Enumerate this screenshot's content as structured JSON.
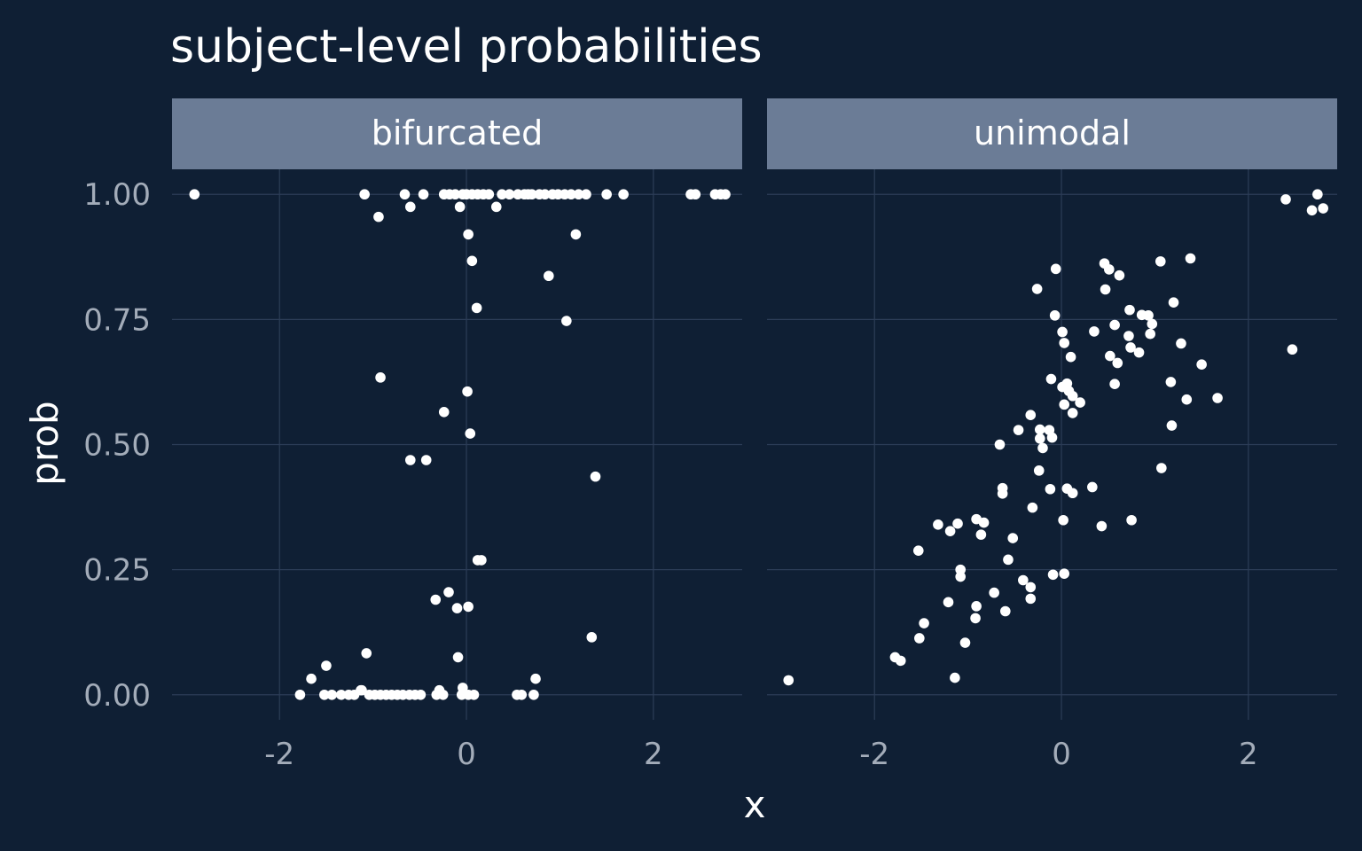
{
  "chart_data": {
    "type": "scatter",
    "title": "subject-level probabilities",
    "xlabel": "x",
    "ylabel": "prob",
    "xlim": [
      -3.15,
      2.95
    ],
    "ylim": [
      -0.05,
      1.05
    ],
    "x_ticks": [
      -2,
      0,
      2
    ],
    "x_tick_labels": [
      "-2",
      "0",
      "2"
    ],
    "y_ticks": [
      0,
      0.25,
      0.5,
      0.75,
      1
    ],
    "y_tick_labels": [
      "0.00",
      "0.25",
      "0.50",
      "0.75",
      "1.00"
    ],
    "grid": true,
    "legend": "none",
    "point_color": "#ffffff",
    "background_color": "#0f1f34",
    "strip_color": "#6b7c96",
    "panels": [
      {
        "name": "bifurcated",
        "points": [
          [
            -2.91,
            1.0
          ],
          [
            -1.09,
            1.0
          ],
          [
            -0.94,
            0.955
          ],
          [
            -0.66,
            1.0
          ],
          [
            -0.6,
            0.975
          ],
          [
            -0.46,
            1.0
          ],
          [
            -0.24,
            1.0
          ],
          [
            -0.18,
            1.0
          ],
          [
            -0.12,
            1.0
          ],
          [
            -0.07,
            0.975
          ],
          [
            -0.04,
            1.0
          ],
          [
            0.0,
            1.0
          ],
          [
            0.06,
            1.0
          ],
          [
            0.12,
            1.0
          ],
          [
            0.18,
            1.0
          ],
          [
            0.24,
            1.0
          ],
          [
            0.32,
            0.975
          ],
          [
            0.38,
            1.0
          ],
          [
            0.46,
            1.0
          ],
          [
            0.55,
            1.0
          ],
          [
            0.62,
            1.0
          ],
          [
            0.66,
            1.0
          ],
          [
            0.7,
            1.0
          ],
          [
            0.78,
            1.0
          ],
          [
            0.84,
            1.0
          ],
          [
            0.92,
            1.0
          ],
          [
            0.98,
            1.0
          ],
          [
            1.05,
            1.0
          ],
          [
            1.12,
            1.0
          ],
          [
            1.2,
            1.0
          ],
          [
            1.28,
            1.0
          ],
          [
            1.5,
            1.0
          ],
          [
            1.68,
            1.0
          ],
          [
            2.4,
            1.0
          ],
          [
            2.45,
            1.0
          ],
          [
            2.66,
            1.0
          ],
          [
            2.72,
            1.0
          ],
          [
            2.77,
            1.0
          ],
          [
            0.02,
            0.92
          ],
          [
            1.17,
            0.92
          ],
          [
            0.06,
            0.867
          ],
          [
            0.88,
            0.837
          ],
          [
            0.11,
            0.773
          ],
          [
            1.07,
            0.747
          ],
          [
            -0.92,
            0.634
          ],
          [
            0.01,
            0.606
          ],
          [
            -0.24,
            0.565
          ],
          [
            0.04,
            0.522
          ],
          [
            -0.6,
            0.469
          ],
          [
            -0.43,
            0.469
          ],
          [
            1.38,
            0.436
          ],
          [
            0.12,
            0.269
          ],
          [
            0.16,
            0.269
          ],
          [
            -0.19,
            0.205
          ],
          [
            -0.33,
            0.19
          ],
          [
            0.02,
            0.176
          ],
          [
            -0.1,
            0.173
          ],
          [
            -1.07,
            0.083
          ],
          [
            -0.09,
            0.075
          ],
          [
            1.34,
            0.115
          ],
          [
            -1.66,
            0.032
          ],
          [
            0.74,
            0.032
          ],
          [
            -1.78,
            0.0
          ],
          [
            -1.52,
            0.0
          ],
          [
            -1.44,
            0.0
          ],
          [
            -1.34,
            0.0
          ],
          [
            -1.26,
            0.0
          ],
          [
            -1.2,
            0.0
          ],
          [
            -1.13,
            0.009
          ],
          [
            -1.04,
            0.0
          ],
          [
            -0.98,
            0.0
          ],
          [
            -0.92,
            0.0
          ],
          [
            -0.86,
            0.0
          ],
          [
            -0.8,
            0.0
          ],
          [
            -0.74,
            0.0
          ],
          [
            -0.68,
            0.0
          ],
          [
            -0.61,
            0.0
          ],
          [
            -0.55,
            0.0
          ],
          [
            -0.49,
            0.0
          ],
          [
            -0.32,
            0.0
          ],
          [
            -0.25,
            0.0
          ],
          [
            -0.05,
            0.0
          ],
          [
            0.02,
            0.0
          ],
          [
            0.08,
            0.0
          ],
          [
            0.54,
            0.0
          ],
          [
            0.59,
            0.0
          ],
          [
            0.72,
            0.0
          ],
          [
            -1.5,
            0.058
          ],
          [
            -1.12,
            0.009
          ],
          [
            -0.29,
            0.009
          ],
          [
            -0.04,
            0.014
          ]
        ]
      },
      {
        "name": "unimodal",
        "points": [
          [
            -2.92,
            0.029
          ],
          [
            2.4,
            0.99
          ],
          [
            2.74,
            1.0
          ],
          [
            2.68,
            0.968
          ],
          [
            2.8,
            0.972
          ],
          [
            2.47,
            0.69
          ],
          [
            -1.78,
            0.075
          ],
          [
            -1.72,
            0.068
          ],
          [
            -1.52,
            0.113
          ],
          [
            -1.47,
            0.143
          ],
          [
            -1.14,
            0.034
          ],
          [
            -1.03,
            0.104
          ],
          [
            -1.21,
            0.185
          ],
          [
            -0.92,
            0.153
          ],
          [
            -0.91,
            0.177
          ],
          [
            -0.72,
            0.204
          ],
          [
            -0.6,
            0.167
          ],
          [
            -0.41,
            0.229
          ],
          [
            -0.33,
            0.192
          ],
          [
            -0.33,
            0.215
          ],
          [
            -0.57,
            0.27
          ],
          [
            -0.52,
            0.313
          ],
          [
            -1.53,
            0.288
          ],
          [
            -1.32,
            0.34
          ],
          [
            -1.19,
            0.327
          ],
          [
            -1.11,
            0.342
          ],
          [
            -0.91,
            0.351
          ],
          [
            -0.83,
            0.344
          ],
          [
            -0.86,
            0.32
          ],
          [
            -1.08,
            0.236
          ],
          [
            -1.08,
            0.25
          ],
          [
            -0.63,
            0.402
          ],
          [
            -0.63,
            0.413
          ],
          [
            -0.31,
            0.374
          ],
          [
            -0.24,
            0.448
          ],
          [
            -0.66,
            0.5
          ],
          [
            -0.46,
            0.529
          ],
          [
            -0.33,
            0.559
          ],
          [
            -0.23,
            0.53
          ],
          [
            -0.23,
            0.512
          ],
          [
            -0.2,
            0.493
          ],
          [
            -0.13,
            0.529
          ],
          [
            -0.1,
            0.514
          ],
          [
            -0.12,
            0.411
          ],
          [
            -0.09,
            0.24
          ],
          [
            0.03,
            0.242
          ],
          [
            0.02,
            0.349
          ],
          [
            0.06,
            0.412
          ],
          [
            0.12,
            0.403
          ],
          [
            0.33,
            0.415
          ],
          [
            0.43,
            0.337
          ],
          [
            0.75,
            0.349
          ],
          [
            1.07,
            0.453
          ],
          [
            0.03,
            0.58
          ],
          [
            0.01,
            0.615
          ],
          [
            0.06,
            0.622
          ],
          [
            0.08,
            0.607
          ],
          [
            0.12,
            0.597
          ],
          [
            0.2,
            0.584
          ],
          [
            0.12,
            0.563
          ],
          [
            -0.11,
            0.631
          ],
          [
            0.1,
            0.675
          ],
          [
            0.03,
            0.703
          ],
          [
            0.01,
            0.725
          ],
          [
            -0.07,
            0.758
          ],
          [
            -0.26,
            0.811
          ],
          [
            -0.06,
            0.851
          ],
          [
            0.46,
            0.862
          ],
          [
            0.51,
            0.85
          ],
          [
            0.62,
            0.838
          ],
          [
            0.47,
            0.81
          ],
          [
            0.35,
            0.726
          ],
          [
            0.57,
            0.739
          ],
          [
            0.72,
            0.717
          ],
          [
            0.52,
            0.677
          ],
          [
            0.6,
            0.663
          ],
          [
            0.57,
            0.621
          ],
          [
            0.74,
            0.694
          ],
          [
            0.83,
            0.684
          ],
          [
            0.73,
            0.769
          ],
          [
            0.86,
            0.759
          ],
          [
            0.93,
            0.758
          ],
          [
            0.97,
            0.741
          ],
          [
            0.95,
            0.721
          ],
          [
            1.06,
            0.866
          ],
          [
            1.38,
            0.872
          ],
          [
            1.2,
            0.784
          ],
          [
            1.28,
            0.702
          ],
          [
            1.5,
            0.66
          ],
          [
            1.17,
            0.625
          ],
          [
            1.34,
            0.59
          ],
          [
            1.67,
            0.593
          ],
          [
            1.18,
            0.538
          ]
        ]
      }
    ]
  }
}
